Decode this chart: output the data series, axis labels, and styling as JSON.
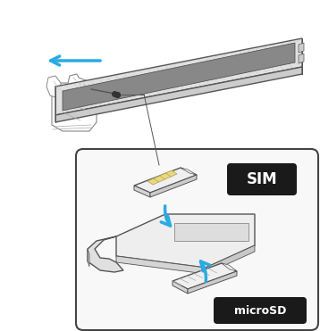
{
  "bg_color": "#ffffff",
  "box_bg": "#f5f5f5",
  "box_border": "#444444",
  "sim_label": "SIM",
  "microsd_label": "microSD",
  "label_bg": "#1a1a1a",
  "label_fg": "#ffffff",
  "arrow_color": "#29abe2",
  "line_color": "#555555",
  "figsize": [
    3.58,
    3.71
  ],
  "dpi": 100
}
